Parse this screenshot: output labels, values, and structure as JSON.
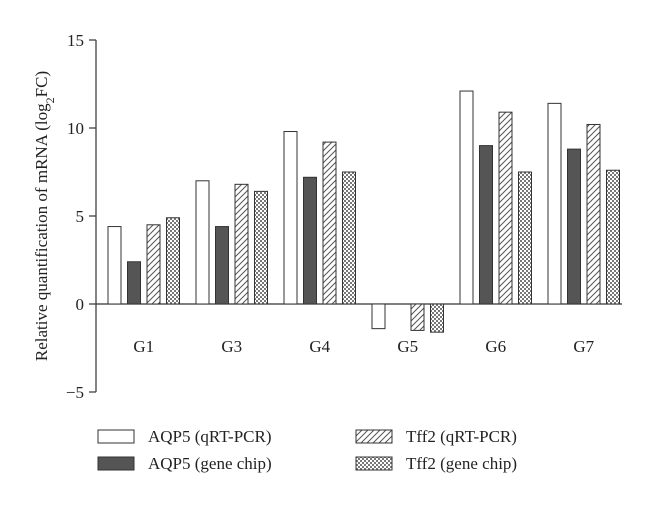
{
  "chart_data": {
    "type": "bar",
    "title": "",
    "xlabel": "",
    "ylabel": "Relative quantification of mRNA (log",
    "ylabel_sub": "2",
    "ylabel_end": "FC)",
    "ylim": [
      -5,
      15
    ],
    "yticks": [
      15,
      10,
      5,
      0,
      -5
    ],
    "ytick_labels": [
      "15",
      "10",
      "5",
      "0",
      "−5"
    ],
    "grid": false,
    "legend_position": "bottom",
    "categories": [
      "G1",
      "G3",
      "G4",
      "G5",
      "G6",
      "G7"
    ],
    "series": [
      {
        "name": "AQP5 (qRT-PCR)",
        "pattern": "white",
        "values": [
          4.4,
          7.0,
          9.8,
          -1.4,
          12.1,
          11.4
        ]
      },
      {
        "name": "AQP5 (gene chip)",
        "pattern": "dark",
        "values": [
          2.4,
          4.4,
          7.2,
          0,
          9.0,
          8.8
        ]
      },
      {
        "name": "Tff2 (qRT-PCR)",
        "pattern": "hatch",
        "values": [
          4.5,
          6.8,
          9.2,
          -1.5,
          10.9,
          10.2
        ]
      },
      {
        "name": "Tff2 (gene chip)",
        "pattern": "checker",
        "values": [
          4.9,
          6.4,
          7.5,
          -1.6,
          7.5,
          7.6
        ]
      }
    ],
    "colors": {
      "stroke": "#333333",
      "dark_fill": "#555555",
      "white_fill": "#ffffff"
    }
  }
}
